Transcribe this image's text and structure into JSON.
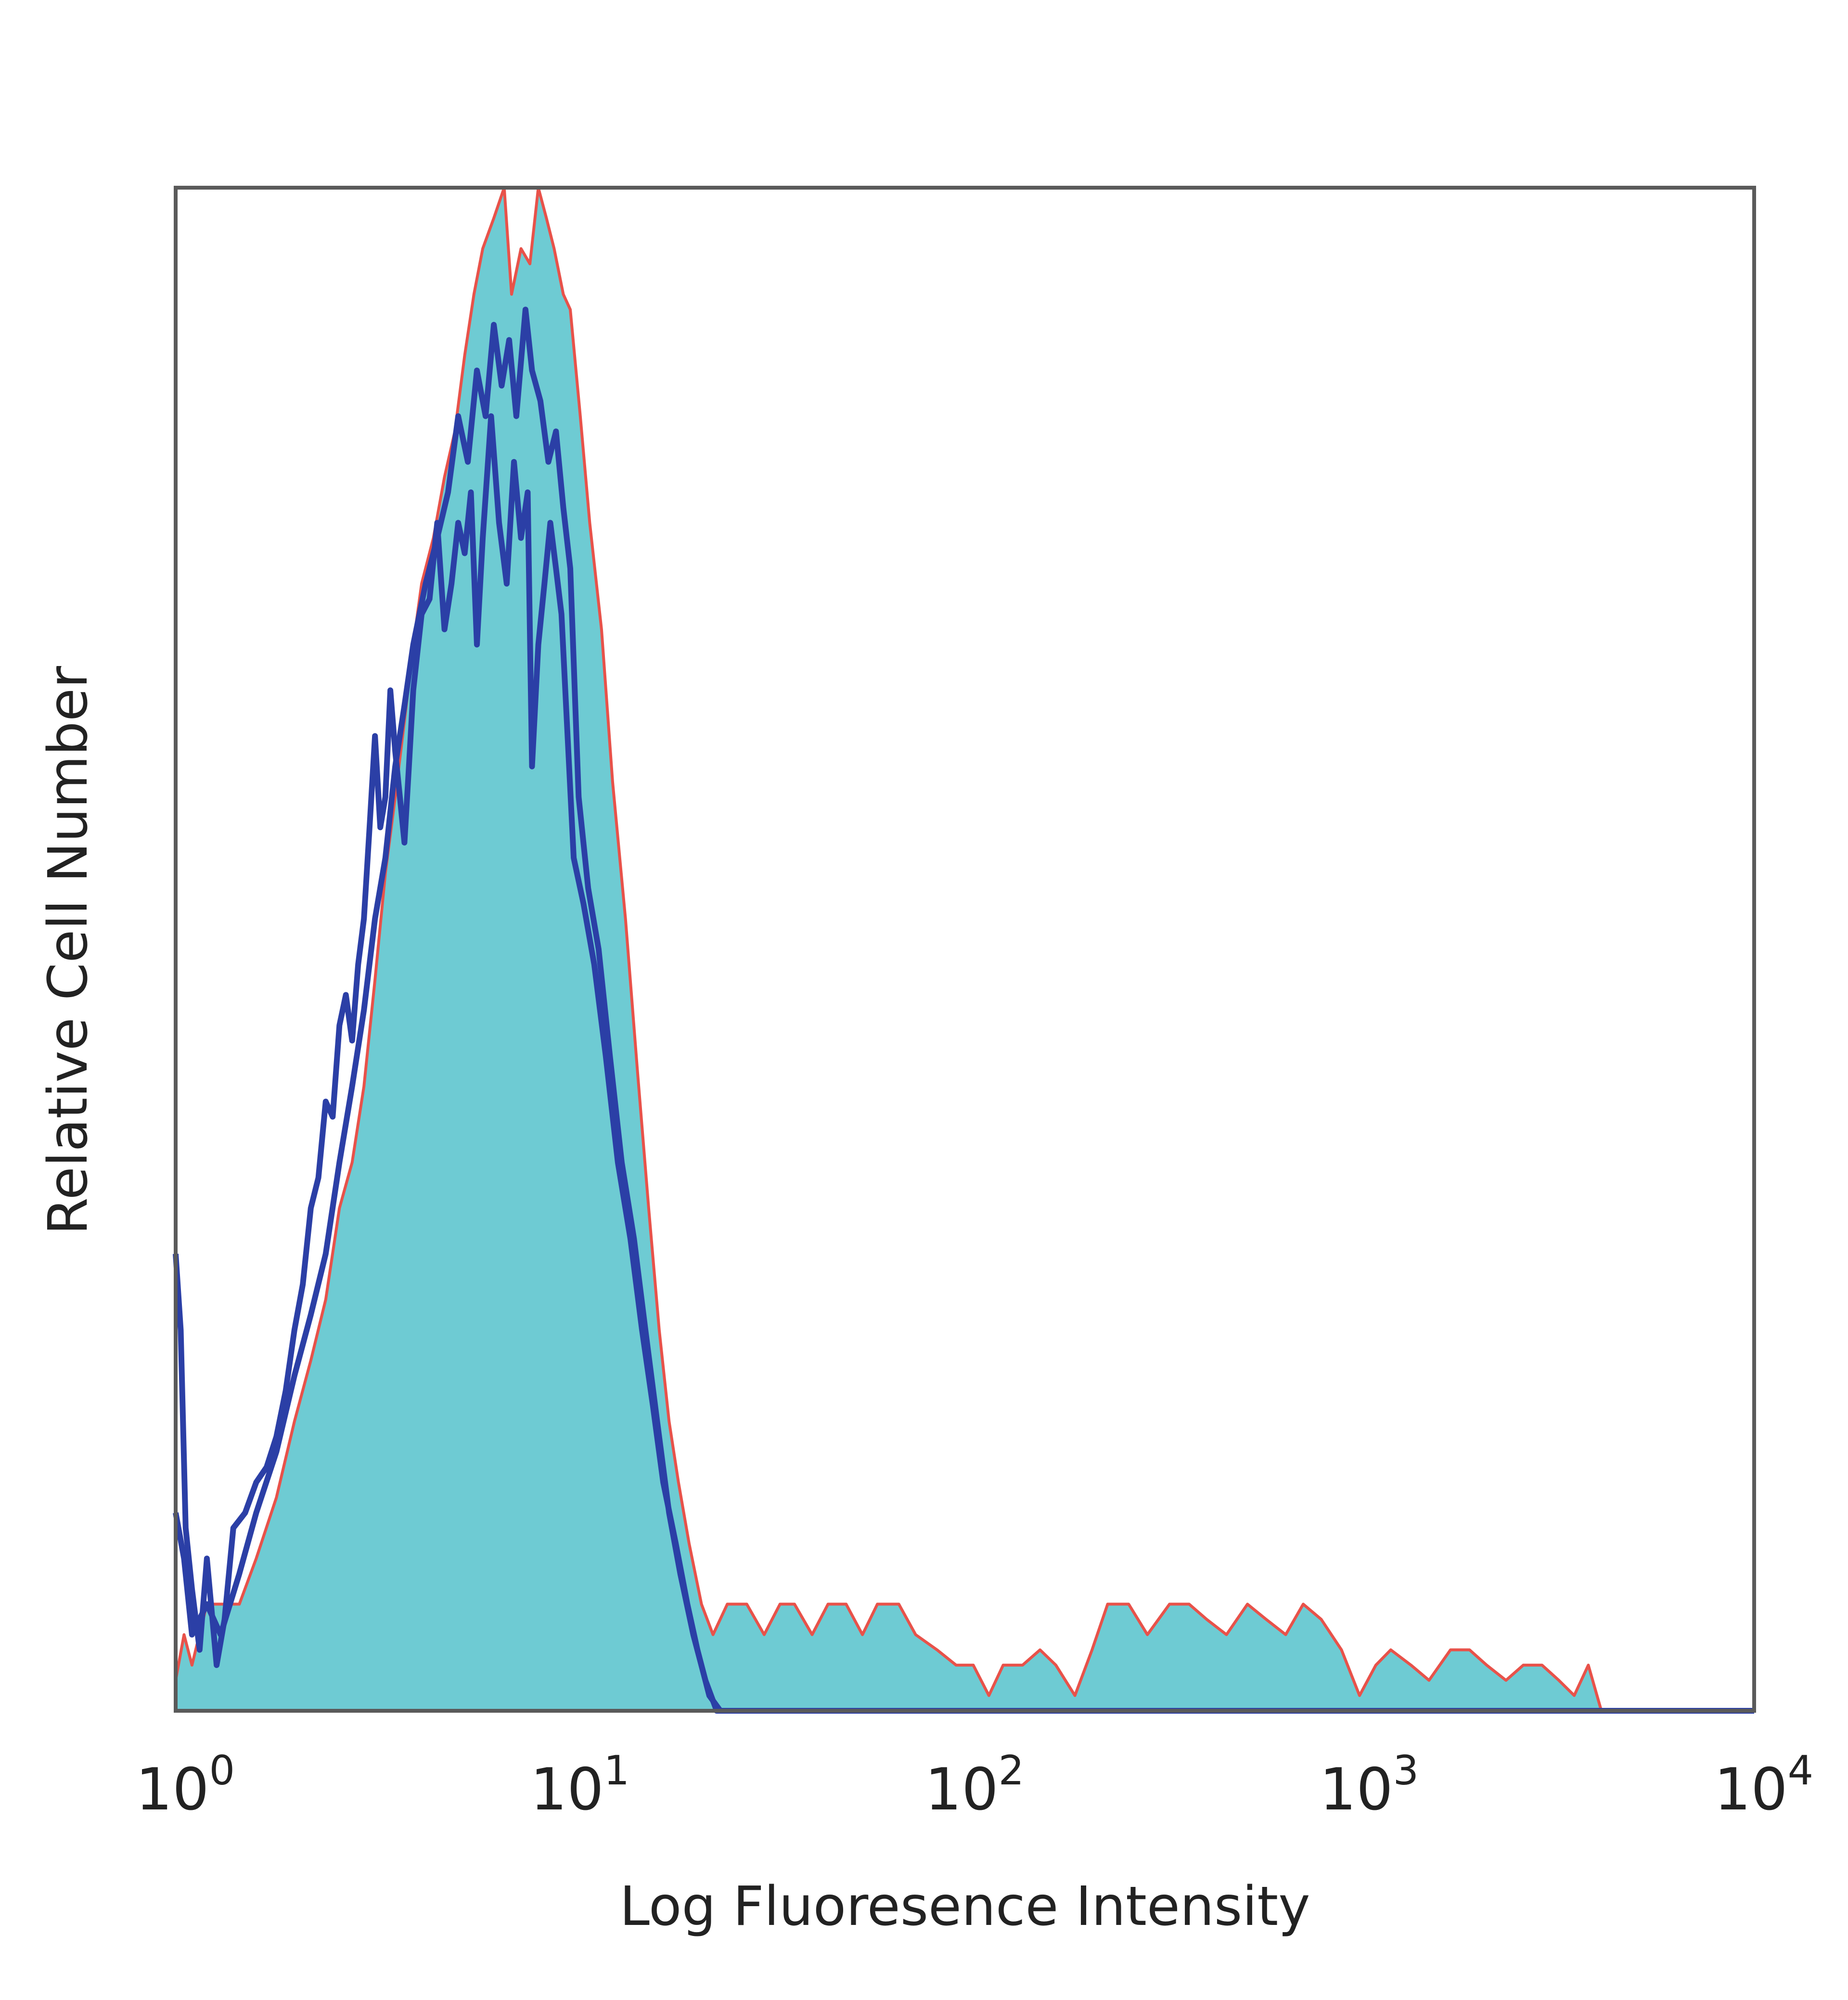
{
  "chart_data": {
    "type": "area",
    "title": "",
    "xlabel": "Log Fluoresence Intensity",
    "ylabel": "Relative Cell Number",
    "x_scale": "log",
    "xlim": [
      1,
      10000
    ],
    "ylim": [
      0,
      1
    ],
    "grid": false,
    "legend": "none",
    "x_ticks": [
      {
        "value": 1,
        "base": "10",
        "exp": "0"
      },
      {
        "value": 10,
        "base": "10",
        "exp": "1"
      },
      {
        "value": 100,
        "base": "10",
        "exp": "2"
      },
      {
        "value": 1000,
        "base": "10",
        "exp": "3"
      },
      {
        "value": 10000,
        "base": "10",
        "exp": "4"
      }
    ],
    "series": [
      {
        "style": "filled",
        "fill": "#6ecbd3",
        "outline": "#e8524a",
        "points": [
          [
            1.0,
            0.02
          ],
          [
            1.05,
            0.05
          ],
          [
            1.1,
            0.03
          ],
          [
            1.2,
            0.07
          ],
          [
            1.3,
            0.07
          ],
          [
            1.45,
            0.07
          ],
          [
            1.6,
            0.1
          ],
          [
            1.8,
            0.14
          ],
          [
            2.0,
            0.19
          ],
          [
            2.2,
            0.23
          ],
          [
            2.4,
            0.27
          ],
          [
            2.6,
            0.33
          ],
          [
            2.8,
            0.36
          ],
          [
            3.0,
            0.41
          ],
          [
            3.2,
            0.48
          ],
          [
            3.4,
            0.55
          ],
          [
            3.6,
            0.6
          ],
          [
            3.8,
            0.65
          ],
          [
            4.0,
            0.7
          ],
          [
            4.2,
            0.74
          ],
          [
            4.5,
            0.77
          ],
          [
            4.8,
            0.81
          ],
          [
            5.1,
            0.84
          ],
          [
            5.4,
            0.89
          ],
          [
            5.7,
            0.93
          ],
          [
            6.0,
            0.96
          ],
          [
            6.4,
            0.98
          ],
          [
            6.8,
            1.0
          ],
          [
            7.1,
            0.93
          ],
          [
            7.5,
            0.96
          ],
          [
            7.9,
            0.95
          ],
          [
            8.3,
            1.0
          ],
          [
            8.7,
            0.98
          ],
          [
            9.1,
            0.96
          ],
          [
            9.6,
            0.93
          ],
          [
            10.0,
            0.92
          ],
          [
            10.6,
            0.85
          ],
          [
            11.2,
            0.78
          ],
          [
            12.0,
            0.71
          ],
          [
            12.8,
            0.61
          ],
          [
            13.8,
            0.52
          ],
          [
            14.8,
            0.42
          ],
          [
            15.8,
            0.33
          ],
          [
            16.8,
            0.25
          ],
          [
            17.8,
            0.19
          ],
          [
            18.8,
            0.15
          ],
          [
            20.0,
            0.11
          ],
          [
            21.5,
            0.07
          ],
          [
            23.0,
            0.05
          ],
          [
            25,
            0.07
          ],
          [
            28,
            0.07
          ],
          [
            31,
            0.05
          ],
          [
            34,
            0.07
          ],
          [
            37,
            0.07
          ],
          [
            41,
            0.05
          ],
          [
            45,
            0.07
          ],
          [
            50,
            0.07
          ],
          [
            55,
            0.05
          ],
          [
            60,
            0.07
          ],
          [
            68,
            0.07
          ],
          [
            75,
            0.05
          ],
          [
            85,
            0.04
          ],
          [
            95,
            0.03
          ],
          [
            105,
            0.03
          ],
          [
            115,
            0.01
          ],
          [
            125,
            0.03
          ],
          [
            140,
            0.03
          ],
          [
            155,
            0.04
          ],
          [
            170,
            0.03
          ],
          [
            190,
            0.01
          ],
          [
            210,
            0.04
          ],
          [
            230,
            0.07
          ],
          [
            260,
            0.07
          ],
          [
            290,
            0.05
          ],
          [
            330,
            0.07
          ],
          [
            370,
            0.07
          ],
          [
            410,
            0.06
          ],
          [
            460,
            0.05
          ],
          [
            520,
            0.07
          ],
          [
            580,
            0.06
          ],
          [
            650,
            0.05
          ],
          [
            720,
            0.07
          ],
          [
            800,
            0.06
          ],
          [
            900,
            0.04
          ],
          [
            1000,
            0.01
          ],
          [
            1100,
            0.03
          ],
          [
            1200,
            0.04
          ],
          [
            1350,
            0.03
          ],
          [
            1500,
            0.02
          ],
          [
            1700,
            0.04
          ],
          [
            1900,
            0.04
          ],
          [
            2100,
            0.03
          ],
          [
            2350,
            0.02
          ],
          [
            2600,
            0.03
          ],
          [
            2900,
            0.03
          ],
          [
            3200,
            0.02
          ],
          [
            3500,
            0.01
          ],
          [
            3800,
            0.03
          ],
          [
            4100,
            0.0
          ],
          [
            5000,
            0.0
          ],
          [
            10000,
            0.0
          ]
        ]
      },
      {
        "style": "line",
        "color": "#2b3fa6",
        "points": [
          [
            1.0,
            0.3
          ],
          [
            1.03,
            0.25
          ],
          [
            1.06,
            0.12
          ],
          [
            1.1,
            0.08
          ],
          [
            1.15,
            0.04
          ],
          [
            1.2,
            0.1
          ],
          [
            1.27,
            0.03
          ],
          [
            1.33,
            0.06
          ],
          [
            1.4,
            0.12
          ],
          [
            1.5,
            0.13
          ],
          [
            1.6,
            0.15
          ],
          [
            1.7,
            0.16
          ],
          [
            1.8,
            0.18
          ],
          [
            1.9,
            0.21
          ],
          [
            2.0,
            0.25
          ],
          [
            2.1,
            0.28
          ],
          [
            2.2,
            0.33
          ],
          [
            2.3,
            0.35
          ],
          [
            2.4,
            0.4
          ],
          [
            2.5,
            0.39
          ],
          [
            2.6,
            0.45
          ],
          [
            2.7,
            0.47
          ],
          [
            2.8,
            0.44
          ],
          [
            2.9,
            0.49
          ],
          [
            3.0,
            0.52
          ],
          [
            3.1,
            0.58
          ],
          [
            3.2,
            0.64
          ],
          [
            3.3,
            0.58
          ],
          [
            3.4,
            0.6
          ],
          [
            3.5,
            0.67
          ],
          [
            3.6,
            0.63
          ],
          [
            3.7,
            0.6
          ],
          [
            3.8,
            0.57
          ],
          [
            3.9,
            0.62
          ],
          [
            4.0,
            0.67
          ],
          [
            4.2,
            0.72
          ],
          [
            4.4,
            0.73
          ],
          [
            4.6,
            0.78
          ],
          [
            4.8,
            0.71
          ],
          [
            5.0,
            0.74
          ],
          [
            5.2,
            0.78
          ],
          [
            5.4,
            0.76
          ],
          [
            5.6,
            0.8
          ],
          [
            5.8,
            0.7
          ],
          [
            6.0,
            0.77
          ],
          [
            6.3,
            0.85
          ],
          [
            6.6,
            0.78
          ],
          [
            6.9,
            0.74
          ],
          [
            7.2,
            0.82
          ],
          [
            7.5,
            0.77
          ],
          [
            7.8,
            0.8
          ],
          [
            8.0,
            0.62
          ],
          [
            8.3,
            0.7
          ],
          [
            8.6,
            0.74
          ],
          [
            8.9,
            0.78
          ],
          [
            9.2,
            0.75
          ],
          [
            9.5,
            0.72
          ],
          [
            9.8,
            0.65
          ],
          [
            10.2,
            0.56
          ],
          [
            10.8,
            0.53
          ],
          [
            11.5,
            0.49
          ],
          [
            12.3,
            0.43
          ],
          [
            13.2,
            0.36
          ],
          [
            14.2,
            0.31
          ],
          [
            15.2,
            0.25
          ],
          [
            16.2,
            0.2
          ],
          [
            17.2,
            0.15
          ],
          [
            18.5,
            0.11
          ],
          [
            19.8,
            0.07
          ],
          [
            21.0,
            0.04
          ],
          [
            22.5,
            0.01
          ],
          [
            24,
            0.0
          ],
          [
            50,
            0.0
          ],
          [
            1000,
            0.0
          ],
          [
            10000,
            0.0
          ]
        ]
      },
      {
        "style": "line",
        "color": "#2b3fa6",
        "points": [
          [
            1.0,
            0.13
          ],
          [
            1.05,
            0.1
          ],
          [
            1.1,
            0.05
          ],
          [
            1.2,
            0.07
          ],
          [
            1.3,
            0.05
          ],
          [
            1.45,
            0.09
          ],
          [
            1.6,
            0.13
          ],
          [
            1.8,
            0.17
          ],
          [
            2.0,
            0.22
          ],
          [
            2.2,
            0.26
          ],
          [
            2.4,
            0.3
          ],
          [
            2.6,
            0.36
          ],
          [
            2.8,
            0.41
          ],
          [
            3.0,
            0.46
          ],
          [
            3.2,
            0.52
          ],
          [
            3.4,
            0.56
          ],
          [
            3.6,
            0.62
          ],
          [
            3.8,
            0.66
          ],
          [
            4.0,
            0.7
          ],
          [
            4.3,
            0.74
          ],
          [
            4.6,
            0.77
          ],
          [
            4.9,
            0.8
          ],
          [
            5.2,
            0.85
          ],
          [
            5.5,
            0.82
          ],
          [
            5.8,
            0.88
          ],
          [
            6.1,
            0.85
          ],
          [
            6.4,
            0.91
          ],
          [
            6.7,
            0.87
          ],
          [
            7.0,
            0.9
          ],
          [
            7.3,
            0.85
          ],
          [
            7.7,
            0.92
          ],
          [
            8.0,
            0.88
          ],
          [
            8.4,
            0.86
          ],
          [
            8.8,
            0.82
          ],
          [
            9.2,
            0.84
          ],
          [
            9.6,
            0.79
          ],
          [
            10.0,
            0.75
          ],
          [
            10.5,
            0.6
          ],
          [
            11.1,
            0.54
          ],
          [
            11.8,
            0.5
          ],
          [
            12.6,
            0.43
          ],
          [
            13.5,
            0.36
          ],
          [
            14.5,
            0.31
          ],
          [
            15.5,
            0.25
          ],
          [
            16.6,
            0.19
          ],
          [
            17.8,
            0.13
          ],
          [
            19.0,
            0.09
          ],
          [
            20.5,
            0.05
          ],
          [
            22.0,
            0.02
          ],
          [
            23.5,
            0.0
          ],
          [
            50,
            0.0
          ],
          [
            10000,
            0.0
          ]
        ]
      }
    ]
  }
}
